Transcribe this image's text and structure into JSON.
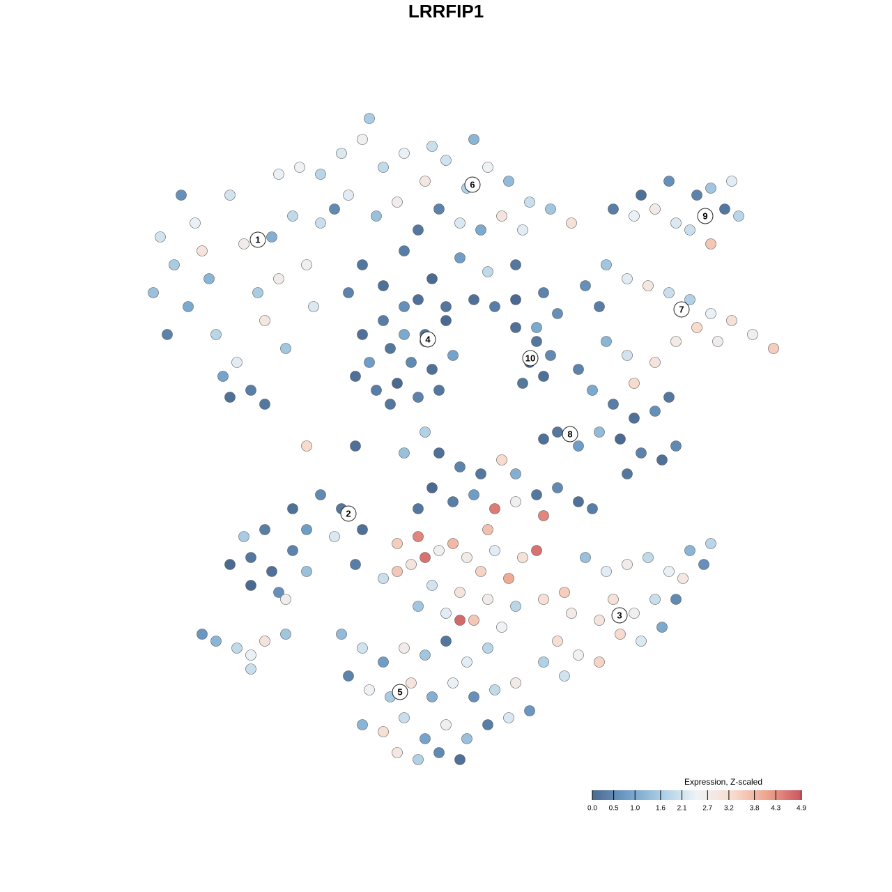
{
  "chart_data": {
    "type": "scatter",
    "title": "LRRFIP1",
    "x": [
      23,
      25,
      28,
      30,
      33,
      35,
      37,
      40,
      42,
      44,
      27,
      31,
      34,
      38,
      41,
      45,
      36,
      33,
      38,
      32,
      22,
      26,
      46,
      43,
      39,
      29,
      24,
      40,
      46,
      49,
      52,
      55,
      58,
      61,
      64,
      67,
      70,
      73,
      76,
      79,
      82,
      50,
      54,
      57,
      63,
      66,
      69,
      72,
      60,
      75,
      48,
      53,
      62,
      68,
      52,
      55,
      58,
      62,
      66,
      70,
      64,
      60,
      50,
      74,
      52,
      55,
      58,
      61,
      64,
      53,
      56,
      59,
      62,
      65,
      54,
      57,
      60,
      63,
      51,
      58,
      61,
      56,
      68,
      71,
      74,
      78,
      80,
      74,
      77,
      76,
      79,
      75,
      78,
      77,
      88,
      91,
      94,
      97,
      100,
      102,
      104,
      106,
      99,
      92,
      105,
      102,
      96,
      87,
      90,
      93,
      96,
      99,
      102,
      105,
      108,
      111,
      100,
      97,
      94,
      90,
      87,
      91,
      86,
      84,
      103,
      83,
      85,
      88,
      91,
      94,
      96,
      89,
      92,
      95,
      97,
      80,
      83,
      86,
      78,
      90,
      63,
      66,
      69,
      72,
      74,
      62,
      65,
      68,
      71,
      74,
      77,
      80,
      83,
      78,
      85,
      60,
      70,
      33,
      36,
      39,
      42,
      36,
      40,
      44,
      38,
      42,
      46,
      49,
      44,
      48,
      52,
      41,
      35,
      51,
      57,
      60,
      61,
      59,
      63,
      65,
      67,
      69,
      71,
      73,
      75,
      77,
      57,
      62,
      66,
      70,
      74,
      78,
      81,
      55,
      68,
      66,
      60,
      64,
      72,
      84,
      87,
      90,
      93,
      96,
      99,
      101,
      88,
      91,
      94,
      97,
      89,
      92,
      86,
      82,
      80,
      83,
      86,
      78,
      81,
      95,
      98,
      102,
      49,
      52,
      55,
      58,
      61,
      64,
      67,
      70,
      50,
      53,
      56,
      59,
      62,
      65,
      68,
      71,
      74,
      52,
      55,
      58,
      61,
      64,
      67,
      70,
      73,
      60,
      63,
      57,
      66,
      76,
      29,
      31,
      34,
      36,
      38,
      41,
      36,
      44,
      51,
      61,
      58
    ],
    "y": [
      94,
      90,
      96,
      88,
      100,
      93,
      86,
      103,
      97,
      90,
      84,
      80,
      76,
      82,
      78,
      84,
      72,
      71,
      70,
      74,
      86,
      100,
      96,
      104,
      94,
      92,
      80,
      88,
      103,
      106,
      108,
      104,
      106,
      102,
      105,
      101,
      104,
      102,
      99,
      98,
      96,
      100,
      97,
      99,
      98,
      96,
      95,
      97,
      95,
      95,
      98,
      111,
      107,
      108,
      90,
      87,
      92,
      88,
      91,
      89,
      84,
      85,
      86,
      90,
      80,
      82,
      84,
      80,
      82,
      76,
      78,
      76,
      75,
      77,
      72,
      73,
      71,
      72,
      74,
      80,
      79,
      70,
      85,
      84,
      85,
      86,
      83,
      81,
      79,
      76,
      77,
      73,
      74,
      81,
      98,
      97,
      98,
      96,
      100,
      101,
      98,
      97,
      95,
      100,
      102,
      93,
      102,
      90,
      88,
      87,
      86,
      85,
      83,
      82,
      80,
      78,
      81,
      79,
      76,
      77,
      79,
      73,
      84,
      87,
      79,
      75,
      72,
      70,
      68,
      69,
      71,
      65,
      63,
      62,
      64,
      66,
      64,
      66,
      65,
      60,
      63,
      61,
      60,
      62,
      60,
      58,
      56,
      57,
      55,
      56,
      57,
      58,
      56,
      54,
      55,
      55,
      52,
      47,
      48,
      46,
      49,
      44,
      43,
      46,
      52,
      55,
      57,
      55,
      52,
      51,
      52,
      42,
      51,
      47,
      50,
      51,
      48,
      47,
      49,
      50,
      48,
      46,
      49,
      45,
      48,
      49,
      46,
      44,
      43,
      42,
      41,
      42,
      43,
      45,
      39,
      39,
      41,
      40,
      38,
      48,
      46,
      47,
      48,
      46,
      49,
      47,
      42,
      40,
      42,
      42,
      37,
      36,
      39,
      40,
      36,
      34,
      33,
      33,
      31,
      38,
      45,
      50,
      37,
      35,
      33,
      35,
      34,
      36,
      33,
      35,
      31,
      29,
      28,
      30,
      28,
      30,
      28,
      29,
      30,
      24,
      23,
      25,
      22,
      24,
      22,
      24,
      25,
      19,
      20,
      20,
      19,
      26,
      37,
      36,
      35,
      34,
      36,
      37,
      32,
      64,
      64,
      66,
      63
    ],
    "values": [
      2.1,
      1.6,
      2.4,
      1.2,
      2.1,
      2.7,
      1.6,
      2.4,
      1.9,
      2.6,
      1.0,
      1.8,
      2.3,
      2.9,
      1.5,
      2.2,
      0.3,
      0.1,
      0.2,
      0.9,
      1.4,
      0.6,
      2.0,
      2.5,
      1.1,
      3.0,
      0.4,
      2.7,
      1.8,
      2.2,
      2.6,
      1.9,
      2.4,
      2.9,
      2.1,
      1.7,
      2.5,
      1.3,
      2.0,
      1.5,
      3.1,
      2.3,
      1.4,
      2.7,
      0.4,
      2.2,
      1.0,
      3.0,
      0.2,
      2.3,
      0.5,
      1.6,
      2.0,
      1.2,
      0.2,
      0.1,
      0.3,
      0.0,
      0.8,
      1.9,
      0.2,
      0.1,
      0.4,
      0.2,
      0.1,
      0.3,
      0.6,
      0.2,
      0.0,
      0.8,
      0.2,
      0.5,
      0.1,
      0.9,
      0.3,
      0.0,
      0.4,
      0.2,
      0.1,
      1.0,
      1.2,
      0.2,
      0.1,
      0.3,
      0.0,
      0.4,
      0.6,
      0.1,
      0.2,
      0.0,
      0.5,
      0.2,
      0.1,
      1.0,
      0.3,
      2.4,
      2.8,
      2.2,
      0.4,
      1.5,
      0.2,
      1.8,
      2.0,
      0.1,
      2.3,
      3.6,
      0.6,
      1.5,
      2.3,
      2.9,
      2.0,
      1.7,
      2.4,
      3.1,
      2.6,
      3.5,
      3.3,
      2.8,
      3.0,
      2.1,
      1.2,
      3.3,
      0.3,
      0.6,
      2.7,
      0.4,
      1.0,
      0.3,
      0.1,
      0.6,
      0.2,
      0.0,
      0.4,
      0.1,
      0.5,
      0.2,
      0.8,
      1.3,
      0.1,
      0.2,
      0.1,
      0.4,
      0.2,
      3.3,
      1.1,
      0.0,
      0.3,
      0.8,
      4.5,
      2.6,
      0.2,
      0.5,
      0.1,
      4.4,
      0.3,
      0.2,
      3.7,
      0.0,
      0.2,
      0.1,
      0.4,
      0.0,
      0.6,
      1.4,
      0.3,
      0.1,
      0.5,
      0.2,
      0.8,
      2.2,
      0.1,
      2.7,
      1.6,
      0.3,
      3.5,
      4.4,
      4.6,
      3.0,
      2.6,
      3.8,
      2.8,
      3.4,
      2.3,
      4.0,
      3.1,
      4.6,
      3.6,
      2.1,
      3.0,
      2.7,
      1.8,
      3.2,
      3.5,
      2.0,
      3.6,
      4.7,
      1.5,
      2.3,
      2.5,
      1.4,
      2.3,
      2.7,
      1.9,
      2.4,
      1.2,
      0.6,
      3.1,
      2.6,
      2.0,
      0.5,
      3.3,
      2.2,
      3.0,
      2.8,
      3.2,
      2.5,
      3.4,
      1.7,
      2.1,
      1.0,
      2.9,
      1.8,
      1.3,
      2.1,
      0.8,
      2.7,
      1.5,
      0.2,
      2.3,
      1.8,
      0.4,
      2.5,
      1.6,
      3.0,
      1.1,
      2.4,
      0.6,
      1.9,
      2.8,
      1.2,
      3.2,
      2.0,
      0.9,
      2.6,
      1.4,
      0.3,
      2.2,
      1.7,
      0.5,
      2.9,
      0.1,
      0.7,
      0.7,
      1.2,
      1.9,
      2.4,
      3.0,
      1.5,
      2.0,
      3.3,
      0.1,
      1.7,
      1.4
    ],
    "annotations": [
      {
        "label": "1",
        "x": 37,
        "y": 93.6
      },
      {
        "label": "6",
        "x": 67.8,
        "y": 101.5
      },
      {
        "label": "9",
        "x": 101.2,
        "y": 97
      },
      {
        "label": "7",
        "x": 97.8,
        "y": 83.6
      },
      {
        "label": "4",
        "x": 61.4,
        "y": 79.3
      },
      {
        "label": "10",
        "x": 76.1,
        "y": 76.6
      },
      {
        "label": "8",
        "x": 81.8,
        "y": 65.7
      },
      {
        "label": "2",
        "x": 50,
        "y": 54.3
      },
      {
        "label": "3",
        "x": 88.9,
        "y": 39.7
      },
      {
        "label": "5",
        "x": 57.4,
        "y": 28.7
      }
    ],
    "colorbar_title": "Expression, Z-scaled",
    "colorlim": [
      0,
      4.9
    ],
    "colorticks": [
      {
        "value": 0,
        "label": "0.0"
      },
      0.5,
      {
        "value": 1,
        "label": "1.0"
      },
      1.6,
      2.1,
      2.7,
      3.2,
      3.8,
      4.3,
      4.9
    ],
    "colors": [
      "#4b6a92",
      "#6f9ec8",
      "#abcee4",
      "#eef3f7",
      "#f8ddd0",
      "#eea58f",
      "#cc5560"
    ]
  }
}
